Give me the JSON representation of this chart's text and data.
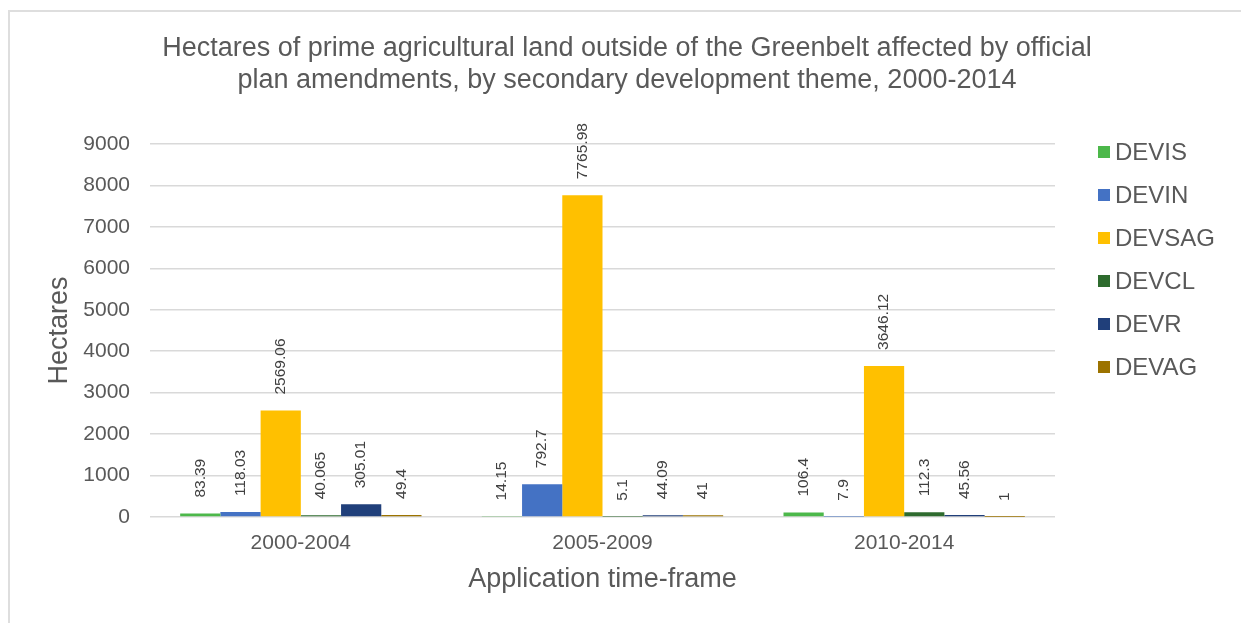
{
  "chart_data": {
    "type": "bar",
    "title": "Hectares of prime agricultural land outside of the Greenbelt affected by official plan amendments, by secondary development theme, 2000-2014",
    "xlabel": "Application time-frame",
    "ylabel": "Hectares",
    "categories": [
      "2000-2004",
      "2005-2009",
      "2010-2014"
    ],
    "series": [
      {
        "name": "DEVIS",
        "color": "#4cb84a",
        "values": [
          83.39,
          14.15,
          106.4
        ]
      },
      {
        "name": "DEVIN",
        "color": "#4472c4",
        "values": [
          118.03,
          792.7,
          7.9
        ]
      },
      {
        "name": "DEVSAG",
        "color": "#ffc000",
        "values": [
          2569.06,
          7765.98,
          3646.12
        ]
      },
      {
        "name": "DEVCL",
        "color": "#2e6b2e",
        "values": [
          40.065,
          5.1,
          112.3
        ]
      },
      {
        "name": "DEVR",
        "color": "#203f7a",
        "values": [
          305.01,
          44.09,
          45.56
        ]
      },
      {
        "name": "DEVAG",
        "color": "#9c7300",
        "values": [
          49.4,
          41,
          1
        ]
      }
    ],
    "ylim": [
      0,
      9000
    ],
    "yticks": [
      0,
      1000,
      2000,
      3000,
      4000,
      5000,
      6000,
      7000,
      8000,
      9000
    ],
    "grid": "y",
    "legend": "right",
    "data_labels": true
  }
}
